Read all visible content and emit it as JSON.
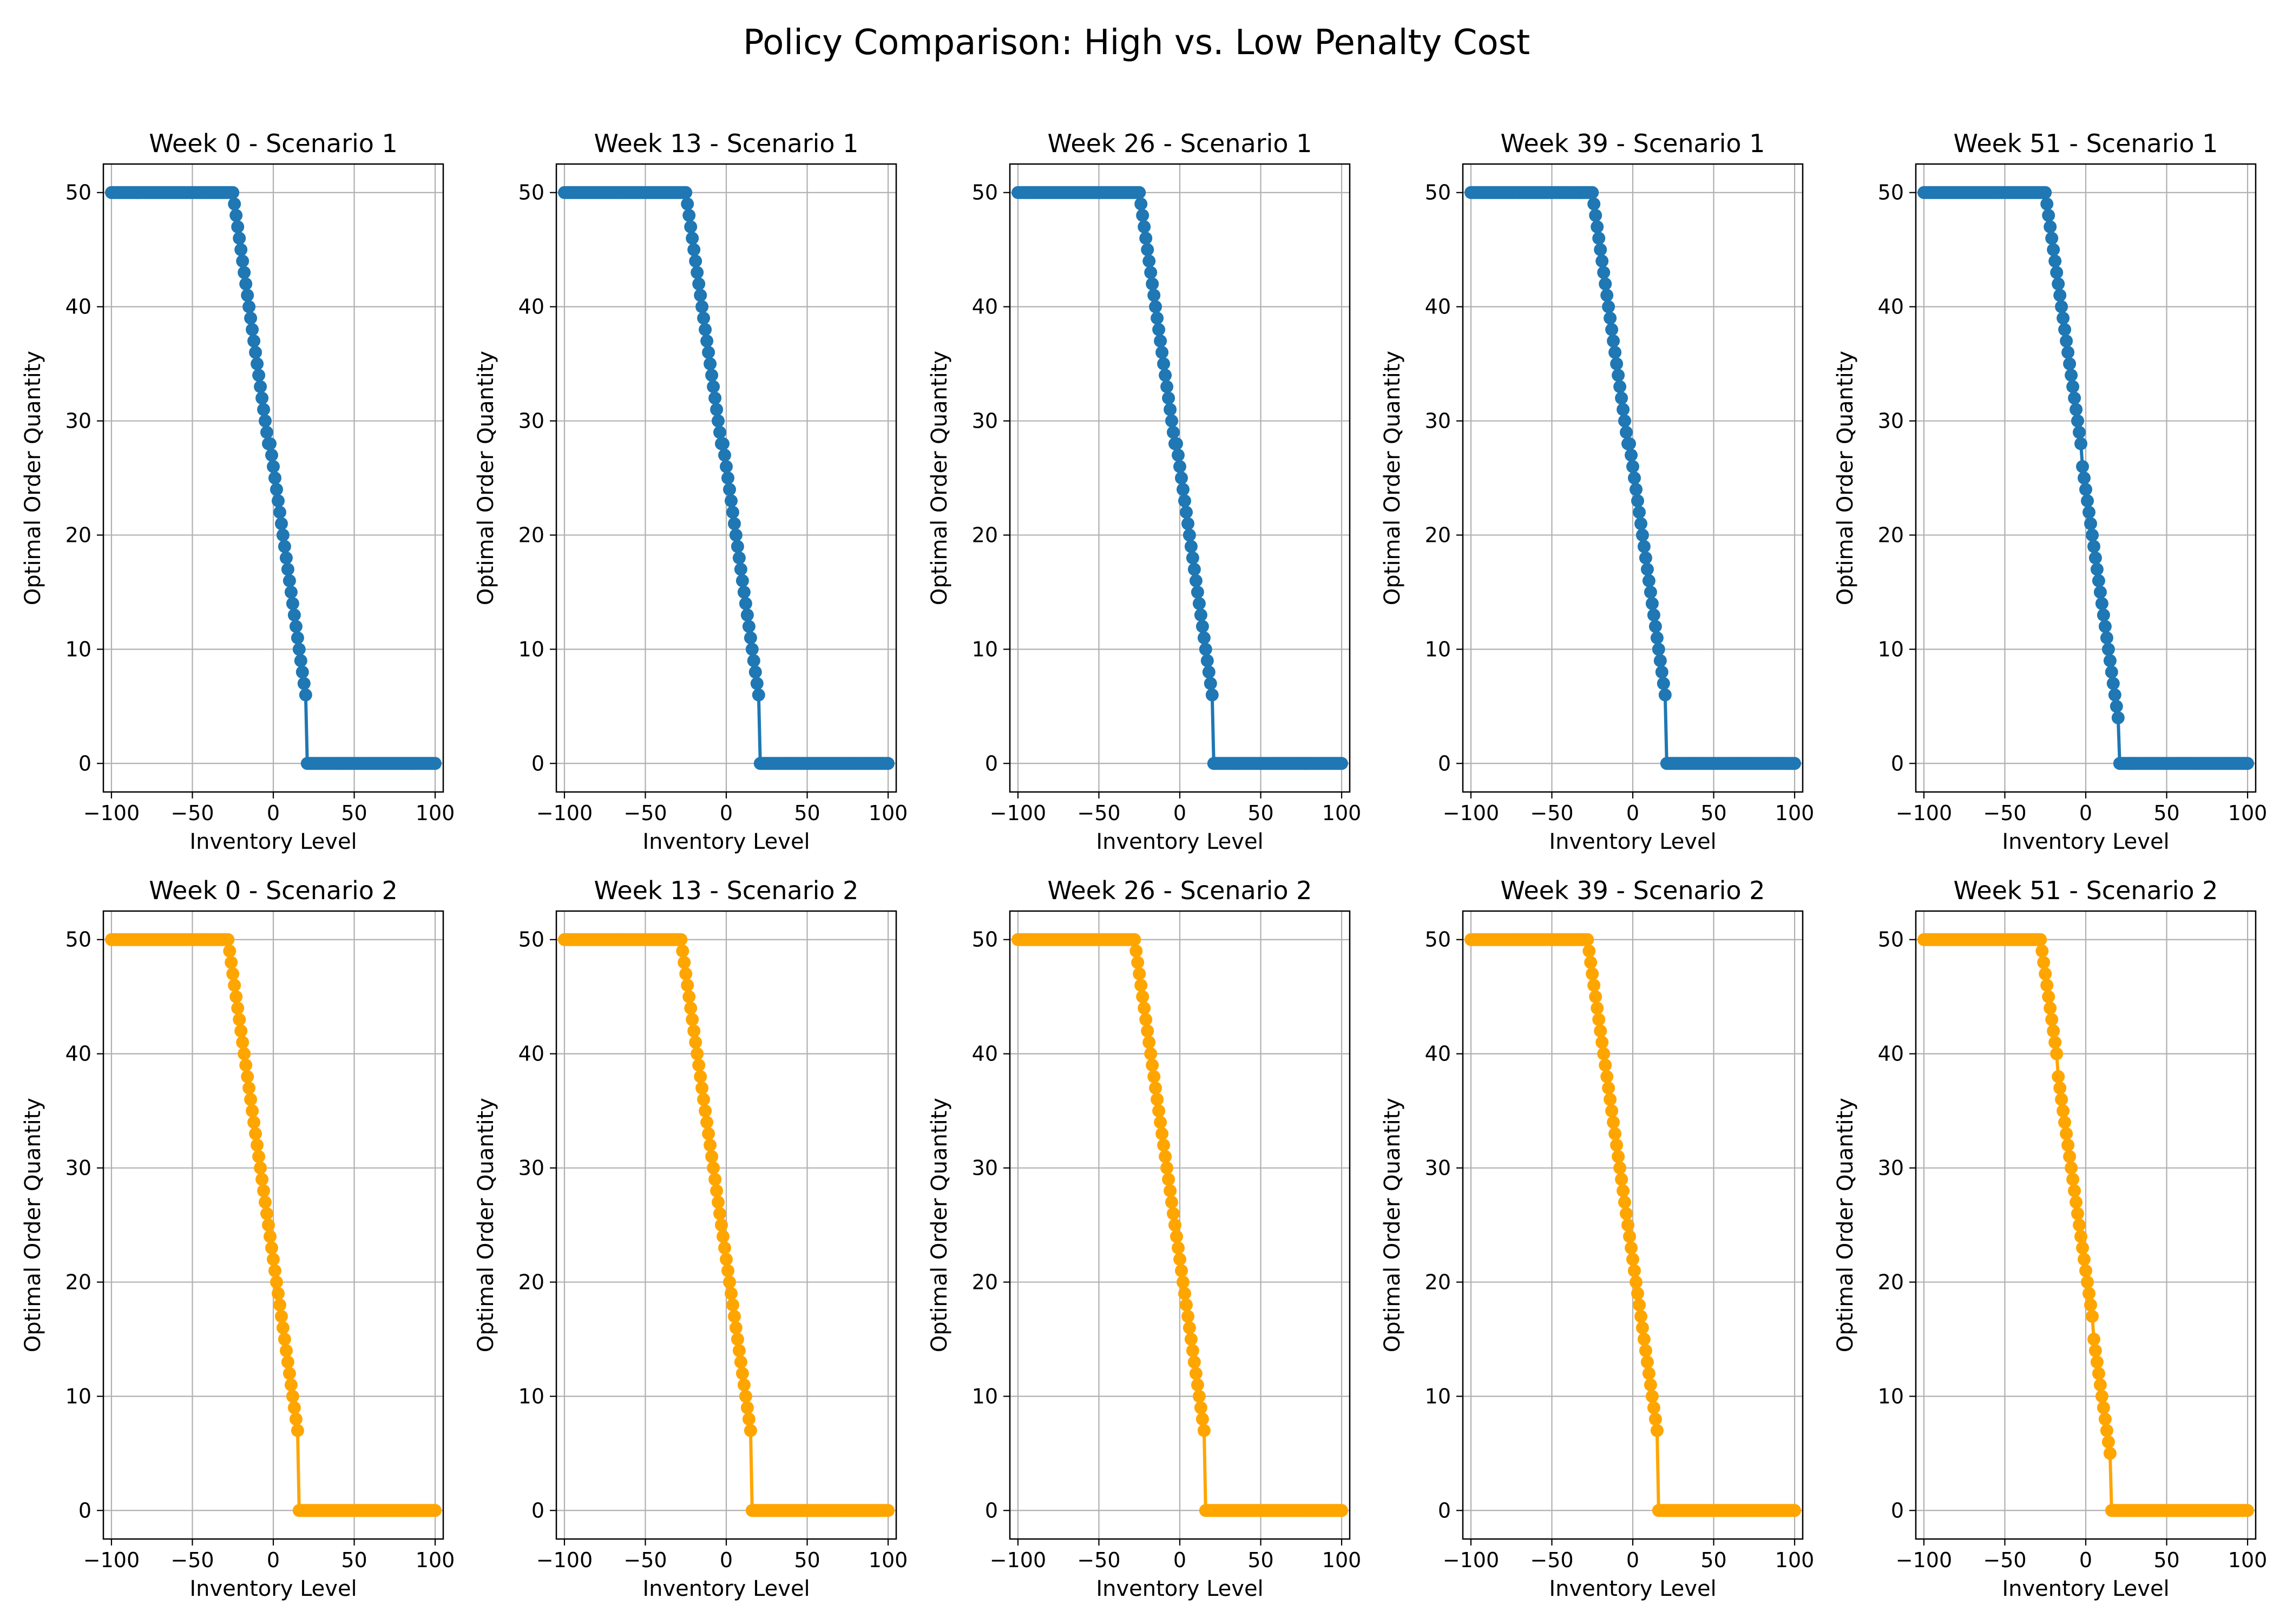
{
  "figure": {
    "title": "Policy Comparison: High vs. Low Penalty Cost"
  },
  "colors": {
    "scenario1": "#1f77b4",
    "scenario2": "#ffa500",
    "grid": "#b0b0b0",
    "axes": "#000000"
  },
  "chart_data": [
    {
      "type": "line",
      "title": "Week 0 - Scenario 1",
      "xlabel": "Inventory Level",
      "ylabel": "Optimal Order Quantity",
      "xlim": [
        -105,
        105
      ],
      "ylim": [
        -2.5,
        52.5
      ],
      "xticks": [
        -100,
        -50,
        0,
        50,
        100
      ],
      "yticks": [
        0,
        10,
        20,
        30,
        40,
        50
      ],
      "grid": true,
      "marker": "circle",
      "color": "#1f77b4",
      "series": [
        {
          "x": [
            -100,
            -25,
            20,
            21,
            100
          ],
          "y": [
            50,
            50,
            6,
            0,
            0
          ]
        }
      ]
    },
    {
      "type": "line",
      "title": "Week 13 - Scenario 1",
      "xlabel": "Inventory Level",
      "ylabel": "Optimal Order Quantity",
      "xlim": [
        -105,
        105
      ],
      "ylim": [
        -2.5,
        52.5
      ],
      "xticks": [
        -100,
        -50,
        0,
        50,
        100
      ],
      "yticks": [
        0,
        10,
        20,
        30,
        40,
        50
      ],
      "grid": true,
      "marker": "circle",
      "color": "#1f77b4",
      "series": [
        {
          "x": [
            -100,
            -25,
            20,
            21,
            100
          ],
          "y": [
            50,
            50,
            6,
            0,
            0
          ]
        }
      ]
    },
    {
      "type": "line",
      "title": "Week 26 - Scenario 1",
      "xlabel": "Inventory Level",
      "ylabel": "Optimal Order Quantity",
      "xlim": [
        -105,
        105
      ],
      "ylim": [
        -2.5,
        52.5
      ],
      "xticks": [
        -100,
        -50,
        0,
        50,
        100
      ],
      "yticks": [
        0,
        10,
        20,
        30,
        40,
        50
      ],
      "grid": true,
      "marker": "circle",
      "color": "#1f77b4",
      "series": [
        {
          "x": [
            -100,
            -25,
            20,
            21,
            100
          ],
          "y": [
            50,
            50,
            6,
            0,
            0
          ]
        }
      ]
    },
    {
      "type": "line",
      "title": "Week 39 - Scenario 1",
      "xlabel": "Inventory Level",
      "ylabel": "Optimal Order Quantity",
      "xlim": [
        -105,
        105
      ],
      "ylim": [
        -2.5,
        52.5
      ],
      "xticks": [
        -100,
        -50,
        0,
        50,
        100
      ],
      "yticks": [
        0,
        10,
        20,
        30,
        40,
        50
      ],
      "grid": true,
      "marker": "circle",
      "color": "#1f77b4",
      "series": [
        {
          "x": [
            -100,
            -25,
            20,
            21,
            100
          ],
          "y": [
            50,
            50,
            6,
            0,
            0
          ]
        }
      ]
    },
    {
      "type": "line",
      "title": "Week 51 - Scenario 1",
      "xlabel": "Inventory Level",
      "ylabel": "Optimal Order Quantity",
      "xlim": [
        -105,
        105
      ],
      "ylim": [
        -2.5,
        52.5
      ],
      "xticks": [
        -100,
        -50,
        0,
        50,
        100
      ],
      "yticks": [
        0,
        10,
        20,
        30,
        40,
        50
      ],
      "grid": true,
      "marker": "circle",
      "color": "#1f77b4",
      "series": [
        {
          "x": [
            -100,
            -25,
            20,
            21,
            100
          ],
          "y": [
            50,
            50,
            4,
            0,
            0
          ]
        }
      ]
    },
    {
      "type": "line",
      "title": "Week 0 - Scenario 2",
      "xlabel": "Inventory Level",
      "ylabel": "Optimal Order Quantity",
      "xlim": [
        -105,
        105
      ],
      "ylim": [
        -2.5,
        52.5
      ],
      "xticks": [
        -100,
        -50,
        0,
        50,
        100
      ],
      "yticks": [
        0,
        10,
        20,
        30,
        40,
        50
      ],
      "grid": true,
      "marker": "circle",
      "color": "#ffa500",
      "series": [
        {
          "x": [
            -100,
            -28,
            15,
            16,
            100
          ],
          "y": [
            50,
            50,
            7,
            0,
            0
          ]
        }
      ]
    },
    {
      "type": "line",
      "title": "Week 13 - Scenario 2",
      "xlabel": "Inventory Level",
      "ylabel": "Optimal Order Quantity",
      "xlim": [
        -105,
        105
      ],
      "ylim": [
        -2.5,
        52.5
      ],
      "xticks": [
        -100,
        -50,
        0,
        50,
        100
      ],
      "yticks": [
        0,
        10,
        20,
        30,
        40,
        50
      ],
      "grid": true,
      "marker": "circle",
      "color": "#ffa500",
      "series": [
        {
          "x": [
            -100,
            -28,
            15,
            16,
            100
          ],
          "y": [
            50,
            50,
            7,
            0,
            0
          ]
        }
      ]
    },
    {
      "type": "line",
      "title": "Week 26 - Scenario 2",
      "xlabel": "Inventory Level",
      "ylabel": "Optimal Order Quantity",
      "xlim": [
        -105,
        105
      ],
      "ylim": [
        -2.5,
        52.5
      ],
      "xticks": [
        -100,
        -50,
        0,
        50,
        100
      ],
      "yticks": [
        0,
        10,
        20,
        30,
        40,
        50
      ],
      "grid": true,
      "marker": "circle",
      "color": "#ffa500",
      "series": [
        {
          "x": [
            -100,
            -28,
            15,
            16,
            100
          ],
          "y": [
            50,
            50,
            7,
            0,
            0
          ]
        }
      ]
    },
    {
      "type": "line",
      "title": "Week 39 - Scenario 2",
      "xlabel": "Inventory Level",
      "ylabel": "Optimal Order Quantity",
      "xlim": [
        -105,
        105
      ],
      "ylim": [
        -2.5,
        52.5
      ],
      "xticks": [
        -100,
        -50,
        0,
        50,
        100
      ],
      "yticks": [
        0,
        10,
        20,
        30,
        40,
        50
      ],
      "grid": true,
      "marker": "circle",
      "color": "#ffa500",
      "series": [
        {
          "x": [
            -100,
            -28,
            15,
            16,
            100
          ],
          "y": [
            50,
            50,
            7,
            0,
            0
          ]
        }
      ]
    },
    {
      "type": "line",
      "title": "Week 51 - Scenario 2",
      "xlabel": "Inventory Level",
      "ylabel": "Optimal Order Quantity",
      "xlim": [
        -105,
        105
      ],
      "ylim": [
        -2.5,
        52.5
      ],
      "xticks": [
        -100,
        -50,
        0,
        50,
        100
      ],
      "yticks": [
        0,
        10,
        20,
        30,
        40,
        50
      ],
      "grid": true,
      "marker": "circle",
      "color": "#ffa500",
      "series": [
        {
          "x": [
            -100,
            -28,
            15,
            16,
            100
          ],
          "y": [
            50,
            50,
            5,
            0,
            0
          ]
        }
      ]
    }
  ]
}
